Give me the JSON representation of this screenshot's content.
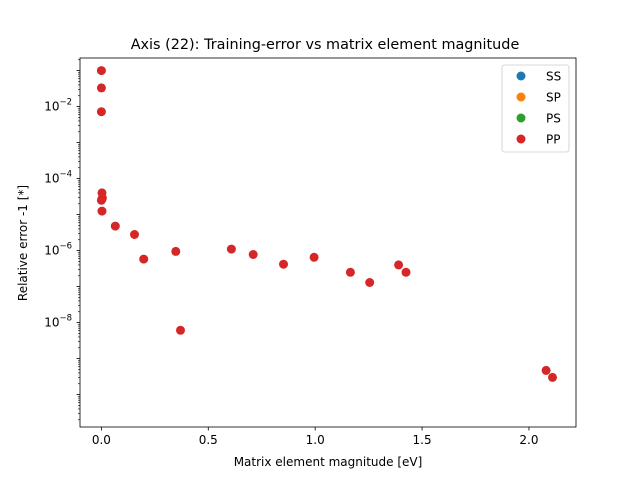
{
  "chart_data": {
    "type": "scatter",
    "title": "Axis (22): Training-error vs matrix element magnitude",
    "xlabel": "Matrix element magnitude [eV]",
    "ylabel": "Relative error -1 [*]",
    "xlim": [
      -0.1,
      2.22
    ],
    "ylim_log10": [
      -10.9,
      -0.65
    ],
    "yscale": "log",
    "x_ticks": [
      0.0,
      0.5,
      1.0,
      1.5,
      2.0
    ],
    "x_tick_labels": [
      "0.0",
      "0.5",
      "1.0",
      "1.5",
      "2.0"
    ],
    "y_tick_exponents": [
      -8,
      -6,
      -4,
      -2
    ],
    "y_tick_base": "10",
    "grid": false,
    "legend_position": "top-right",
    "series": [
      {
        "name": "SS",
        "color": "#1f77b4",
        "points": []
      },
      {
        "name": "SP",
        "color": "#ff7f0e",
        "points": []
      },
      {
        "name": "PS",
        "color": "#2ca02c",
        "points": []
      },
      {
        "name": "PP",
        "color": "#d62728",
        "points": [
          [
            0.0,
            0.1
          ],
          [
            0.0,
            0.033
          ],
          [
            0.0,
            0.0072
          ],
          [
            0.003,
            4e-05
          ],
          [
            0.003,
            2.7e-05
          ],
          [
            0.005,
            2.9e-05
          ],
          [
            0.0,
            2.5e-05
          ],
          [
            0.003,
            1.25e-05
          ],
          [
            0.065,
            4.8e-06
          ],
          [
            0.155,
            2.8e-06
          ],
          [
            0.198,
            5.8e-07
          ],
          [
            0.348,
            9.5e-07
          ],
          [
            0.37,
            6.1e-09
          ],
          [
            0.608,
            1.1e-06
          ],
          [
            0.71,
            7.8e-07
          ],
          [
            0.852,
            4.2e-07
          ],
          [
            0.995,
            6.5e-07
          ],
          [
            1.165,
            2.5e-07
          ],
          [
            1.255,
            1.3e-07
          ],
          [
            1.39,
            4e-07
          ],
          [
            1.425,
            2.5e-07
          ],
          [
            2.08,
            4.7e-10
          ],
          [
            2.11,
            3e-10
          ]
        ]
      }
    ]
  }
}
